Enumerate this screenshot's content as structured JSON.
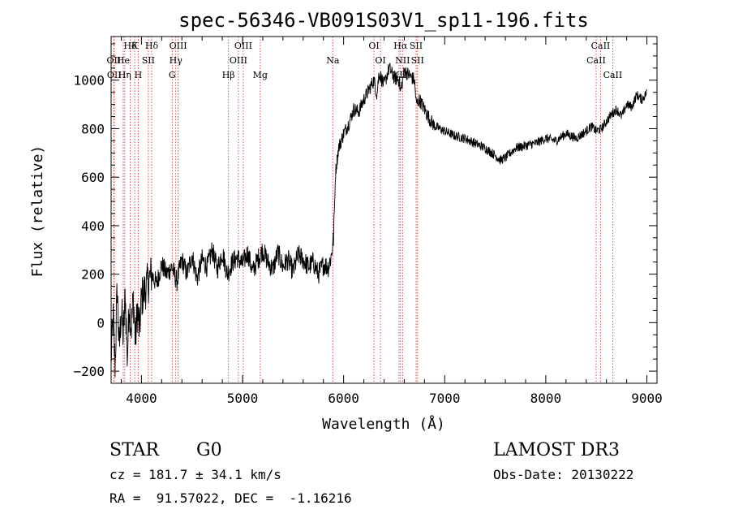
{
  "chart_data": {
    "type": "line",
    "title": "spec-56346-VB091S03V1_sp11-196.fits",
    "xlabel": "Wavelength (Å)",
    "ylabel": "Flux (relative)",
    "xlim": [
      3700,
      9100
    ],
    "ylim": [
      -250,
      1180
    ],
    "x_ticks": [
      4000,
      5000,
      6000,
      7000,
      8000,
      9000
    ],
    "y_ticks": [
      -200,
      0,
      200,
      400,
      600,
      800,
      1000
    ],
    "grid": false,
    "series": [
      {
        "name": "flux",
        "x": [
          3700,
          3720,
          3740,
          3760,
          3780,
          3800,
          3820,
          3840,
          3860,
          3880,
          3900,
          3920,
          3940,
          3960,
          3980,
          4000,
          4050,
          4100,
          4150,
          4200,
          4250,
          4300,
          4350,
          4400,
          4450,
          4500,
          4550,
          4600,
          4650,
          4700,
          4750,
          4800,
          4850,
          4900,
          4950,
          5000,
          5050,
          5100,
          5150,
          5200,
          5250,
          5300,
          5350,
          5400,
          5450,
          5500,
          5550,
          5600,
          5650,
          5700,
          5750,
          5800,
          5850,
          5880,
          5900,
          5920,
          5950,
          6000,
          6050,
          6100,
          6150,
          6200,
          6250,
          6300,
          6330,
          6350,
          6400,
          6450,
          6500,
          6550,
          6563,
          6600,
          6650,
          6700,
          6720,
          6750,
          6800,
          6850,
          6900,
          6950,
          7000,
          7050,
          7100,
          7200,
          7300,
          7400,
          7500,
          7550,
          7600,
          7650,
          7700,
          7800,
          7900,
          8000,
          8100,
          8200,
          8300,
          8400,
          8450,
          8500,
          8550,
          8600,
          8650,
          8700,
          8750,
          8800,
          8850,
          8900,
          8950,
          9000
        ],
        "y": [
          -150,
          20,
          -180,
          150,
          -120,
          60,
          -60,
          120,
          -150,
          80,
          -20,
          100,
          -80,
          60,
          -40,
          100,
          150,
          200,
          160,
          240,
          200,
          230,
          170,
          260,
          200,
          280,
          180,
          260,
          230,
          300,
          220,
          290,
          200,
          250,
          270,
          240,
          290,
          210,
          260,
          300,
          250,
          220,
          290,
          230,
          260,
          210,
          280,
          260,
          230,
          250,
          200,
          240,
          230,
          280,
          350,
          620,
          720,
          780,
          820,
          880,
          870,
          920,
          960,
          1000,
          940,
          1030,
          980,
          1050,
          1010,
          1000,
          950,
          1040,
          1020,
          1000,
          900,
          920,
          880,
          840,
          810,
          800,
          790,
          780,
          770,
          760,
          740,
          720,
          690,
          670,
          680,
          700,
          720,
          730,
          740,
          760,
          750,
          780,
          760,
          790,
          810,
          790,
          800,
          830,
          860,
          880,
          850,
          900,
          890,
          940,
          920,
          950
        ]
      }
    ],
    "lines": [
      {
        "label": "Hδ",
        "x": 3889,
        "row": 0
      },
      {
        "label": "K",
        "x": 3933,
        "row": 0
      },
      {
        "label": "Hδ",
        "x": 4101,
        "row": 0
      },
      {
        "label": "OIII",
        "x": 4363,
        "row": 0
      },
      {
        "label": "OIII",
        "x": 5007,
        "row": 0
      },
      {
        "label": "OI",
        "x": 6300,
        "row": 0
      },
      {
        "label": "Hα",
        "x": 6563,
        "row": 0
      },
      {
        "label": "SII",
        "x": 6717,
        "row": 0
      },
      {
        "label": "CaII",
        "x": 8542,
        "row": 0
      },
      {
        "label": "OII",
        "x": 3727,
        "row": 1
      },
      {
        "label": "He",
        "x": 3820,
        "row": 1
      },
      {
        "label": "SII",
        "x": 4068,
        "row": 1
      },
      {
        "label": "Hγ",
        "x": 4340,
        "row": 1
      },
      {
        "label": "OIII",
        "x": 4959,
        "row": 1
      },
      {
        "label": "Na",
        "x": 5893,
        "row": 1
      },
      {
        "label": "OI",
        "x": 6364,
        "row": 1
      },
      {
        "label": "NII",
        "x": 6583,
        "row": 1
      },
      {
        "label": "SII",
        "x": 6731,
        "row": 1
      },
      {
        "label": "CaII",
        "x": 8498,
        "row": 1
      },
      {
        "label": "OII",
        "x": 3730,
        "row": 2
      },
      {
        "label": "Hη",
        "x": 3835,
        "row": 2
      },
      {
        "label": "H",
        "x": 3968,
        "row": 2
      },
      {
        "label": "G",
        "x": 4304,
        "row": 2
      },
      {
        "label": "Hβ",
        "x": 4861,
        "row": 2
      },
      {
        "label": "Mg",
        "x": 5175,
        "row": 2
      },
      {
        "label": "NII",
        "x": 6548,
        "row": 2
      },
      {
        "label": "CaII",
        "x": 8662,
        "row": 2
      }
    ]
  },
  "info": {
    "object_class": "STAR",
    "subclass": "G0",
    "survey": "LAMOST DR3",
    "redshift_text": "cz = 181.7 ± 34.1 km/s",
    "obs_date_text": "Obs-Date: 20130222",
    "coords_text": "RA =  91.57022, DEC =  -1.16216"
  },
  "colors": {
    "line_marker": "#d02020",
    "trace": "#000000"
  }
}
